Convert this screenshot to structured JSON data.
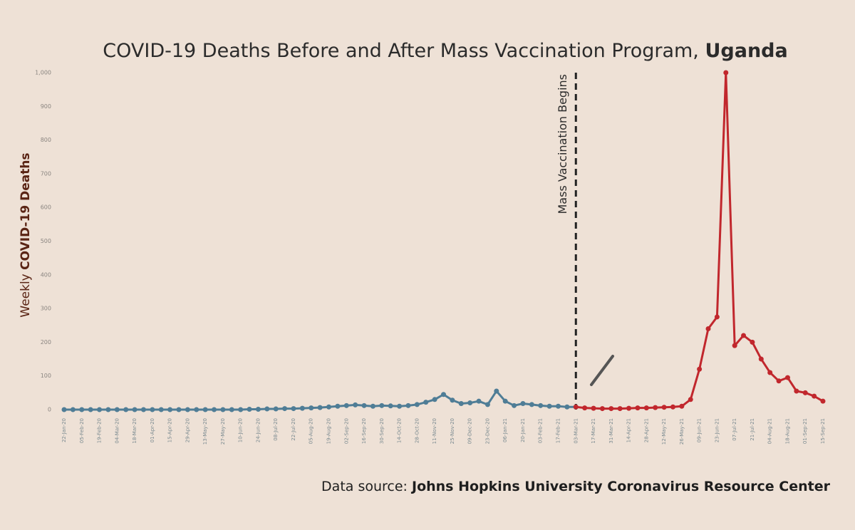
{
  "chart_data": {
    "type": "line",
    "title": "COVID-19 Deaths Before and After Mass Vaccination Program,",
    "title_emphasis": "Uganda",
    "ylabel": "Weekly",
    "ylabel_emphasis": "COVID-19 Deaths",
    "source": "Data source:",
    "source_emphasis": "Johns Hopkins University Coronavirus Resource Center",
    "annotation": {
      "text": "Mass Vaccination Begins",
      "category_index": 58
    },
    "color_before": "#4f7d96",
    "color_after": "#c1272d",
    "categories": [
      "22-Jan-20",
      null,
      "05-Feb-20",
      null,
      "19-Feb-20",
      null,
      "04-Mar-20",
      null,
      "18-Mar-20",
      null,
      "01-Apr-20",
      null,
      "15-Apr-20",
      null,
      "29-Apr-20",
      null,
      "13-May-20",
      null,
      "27-May-20",
      null,
      "10-Jun-20",
      null,
      "24-Jun-20",
      null,
      "08-Jul-20",
      null,
      "22-Jul-20",
      null,
      "05-Aug-20",
      null,
      "19-Aug-20",
      null,
      "02-Sep-20",
      null,
      "16-Sep-20",
      null,
      "30-Sep-20",
      null,
      "14-Oct-20",
      null,
      "28-Oct-20",
      null,
      "11-Nov-20",
      null,
      "25-Nov-20",
      null,
      "09-Dec-20",
      null,
      "23-Dec-20",
      null,
      "06-Jan-21",
      null,
      "20-Jan-21",
      null,
      "03-Feb-21",
      null,
      "17-Feb-21",
      null,
      "03-Mar-21",
      null,
      "17-Mar-21",
      null,
      "31-Mar-21",
      null,
      "14-Apr-21",
      null,
      "28-Apr-21",
      null,
      "12-May-21",
      null,
      "26-May-21",
      null,
      "09-Jun-21",
      null,
      "23-Jun-21",
      null,
      "07-Jul-21",
      null,
      "21-Jul-21",
      null,
      "04-Aug-21",
      null,
      "18-Aug-21",
      null,
      "01-Sep-21",
      null,
      "15-Sep-21"
    ],
    "values": [
      0,
      0,
      0,
      0,
      0,
      0,
      0,
      0,
      0,
      0,
      0,
      0,
      0,
      0,
      0,
      0,
      0,
      0,
      0,
      0,
      0,
      1,
      1,
      2,
      2,
      3,
      3,
      4,
      5,
      6,
      8,
      10,
      12,
      14,
      12,
      10,
      12,
      11,
      10,
      12,
      15,
      22,
      30,
      45,
      28,
      18,
      20,
      25,
      15,
      55,
      25,
      12,
      18,
      15,
      12,
      10,
      10,
      8,
      8,
      5,
      4,
      3,
      3,
      3,
      4,
      5,
      5,
      6,
      7,
      8,
      10,
      30,
      120,
      240,
      275,
      1000,
      190,
      220,
      200,
      150,
      110,
      85,
      95,
      55,
      50,
      40,
      25
    ],
    "ylim": [
      0,
      1000
    ],
    "yticks": [
      0,
      100,
      200,
      300,
      400,
      500,
      600,
      700,
      800,
      900,
      {
        "value": 1000,
        "label": "1,000"
      }
    ]
  }
}
